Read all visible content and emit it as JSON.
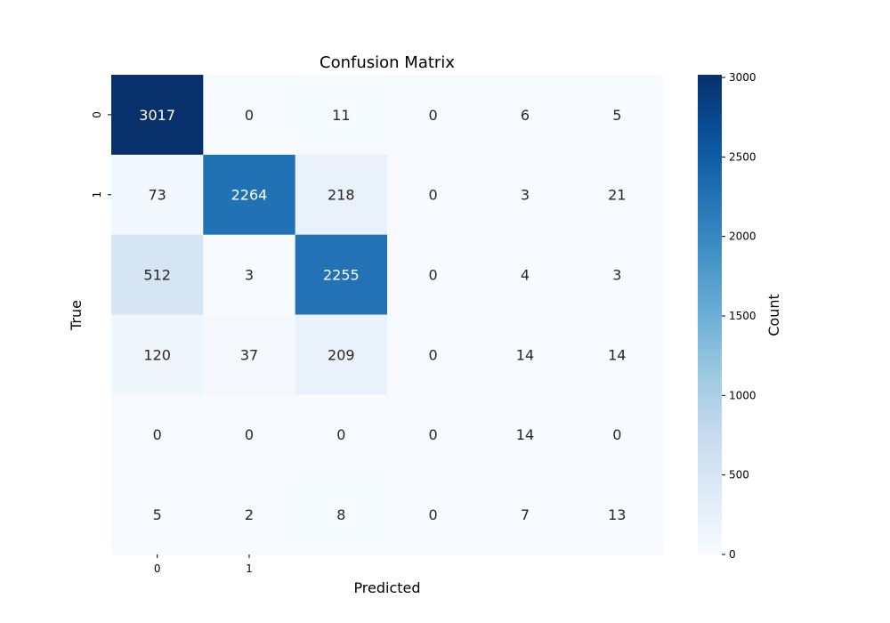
{
  "chart_data": {
    "type": "heatmap",
    "title": "Confusion Matrix",
    "xlabel": "Predicted",
    "ylabel": "True",
    "x_tick_labels": [
      "0",
      "1",
      "",
      "",
      "",
      ""
    ],
    "y_tick_labels": [
      "0",
      "1",
      "",
      "",
      "",
      ""
    ],
    "matrix": [
      [
        3017,
        0,
        11,
        0,
        6,
        5
      ],
      [
        73,
        2264,
        218,
        0,
        3,
        21
      ],
      [
        512,
        3,
        2255,
        0,
        4,
        3
      ],
      [
        120,
        37,
        209,
        0,
        14,
        14
      ],
      [
        0,
        0,
        0,
        0,
        14,
        0
      ],
      [
        5,
        2,
        8,
        0,
        7,
        13
      ]
    ],
    "colorbar": {
      "label": "Count",
      "range": [
        0,
        3017
      ],
      "ticks": [
        0,
        500,
        1000,
        1500,
        2000,
        2500,
        3000
      ],
      "colormap": "Blues",
      "color_low": "#f7fbff",
      "color_high": "#08306b"
    }
  }
}
